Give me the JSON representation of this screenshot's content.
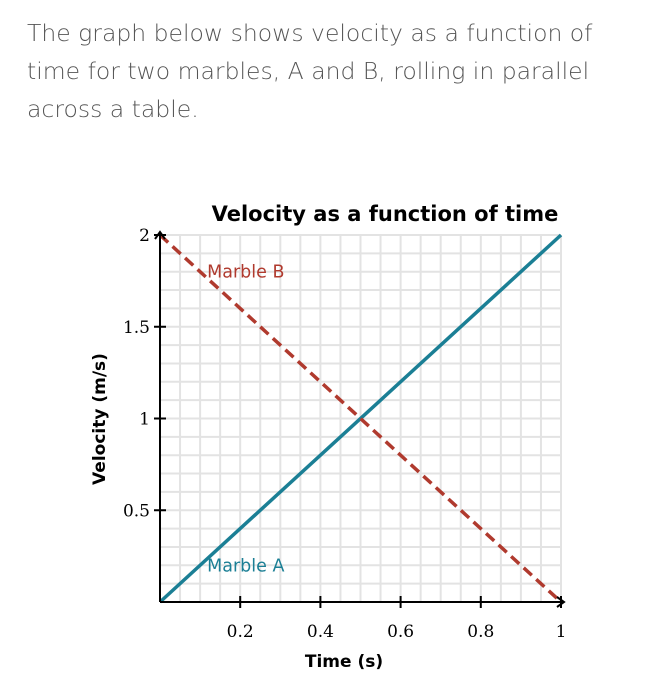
{
  "question": {
    "text": "The graph below shows velocity as a function of time for two marbles, A and B, rolling in parallel across a table."
  },
  "colors": {
    "marble_a": "#1b7f95",
    "marble_b": "#b03a2e",
    "grid": "#e3e3e3",
    "axis": "#000000",
    "text": "#555555"
  },
  "chart_data": {
    "type": "line",
    "title": "Velocity as a function of time",
    "xlabel": "Time (s)",
    "ylabel": "Velocity (m/s)",
    "xlim": [
      0,
      1
    ],
    "ylim": [
      0,
      2
    ],
    "x_ticks": [
      0.2,
      0.4,
      0.6,
      0.8,
      1
    ],
    "x_tick_labels": [
      "0.2",
      "0.4",
      "0.6",
      "0.8",
      "1"
    ],
    "y_ticks": [
      0.5,
      1,
      1.5,
      2
    ],
    "y_tick_labels": [
      "0.5",
      "1",
      "1.5",
      "2"
    ],
    "grid": true,
    "grid_step_x": 0.05,
    "grid_step_y": 0.1,
    "series": [
      {
        "name": "Marble A",
        "style": "solid",
        "x": [
          0,
          1
        ],
        "y": [
          0,
          2
        ],
        "label_at": [
          0.13,
          0.2
        ]
      },
      {
        "name": "Marble B",
        "style": "dashed",
        "x": [
          0,
          1
        ],
        "y": [
          2,
          0
        ],
        "label_at": [
          0.13,
          1.8
        ]
      }
    ]
  }
}
